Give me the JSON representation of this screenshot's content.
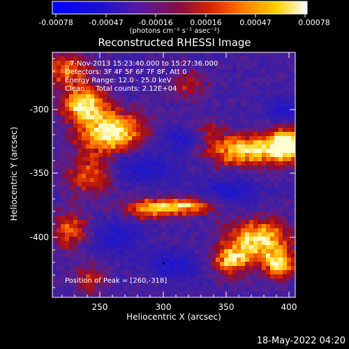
{
  "colorbar": {
    "tick_labels": [
      "-0.00078",
      "-0.00047",
      "-0.00016",
      "0.00016",
      "0.00047",
      "0.00078"
    ],
    "units_label": "(photons cm⁻² s⁻¹ asec⁻²)"
  },
  "title": "Reconstructed RHESSI Image",
  "info": {
    "line1": "7-Nov-2013 15:23:40.000 to 15:27:36.000",
    "line2": "Detectors: 3F 4F 5F 6F 7F 8F, Att 0",
    "line3": "Energy Range: 12.0 - 25.0 keV",
    "line4": "Clean     Total counts: 2.12E+04",
    "peak": "Position of Peak = [260,-318]"
  },
  "axes": {
    "xlabel": "Heliocentric X (arcsec)",
    "ylabel": "Heliocentric Y (arcsec)",
    "x_ticks": [
      "250",
      "300",
      "350",
      "400"
    ],
    "y_ticks": [
      "-300",
      "-350",
      "-400"
    ],
    "xlim": [
      212,
      423
    ],
    "ylim": [
      -444,
      -260
    ]
  },
  "timestamp": "18-May-2022 04:20"
}
